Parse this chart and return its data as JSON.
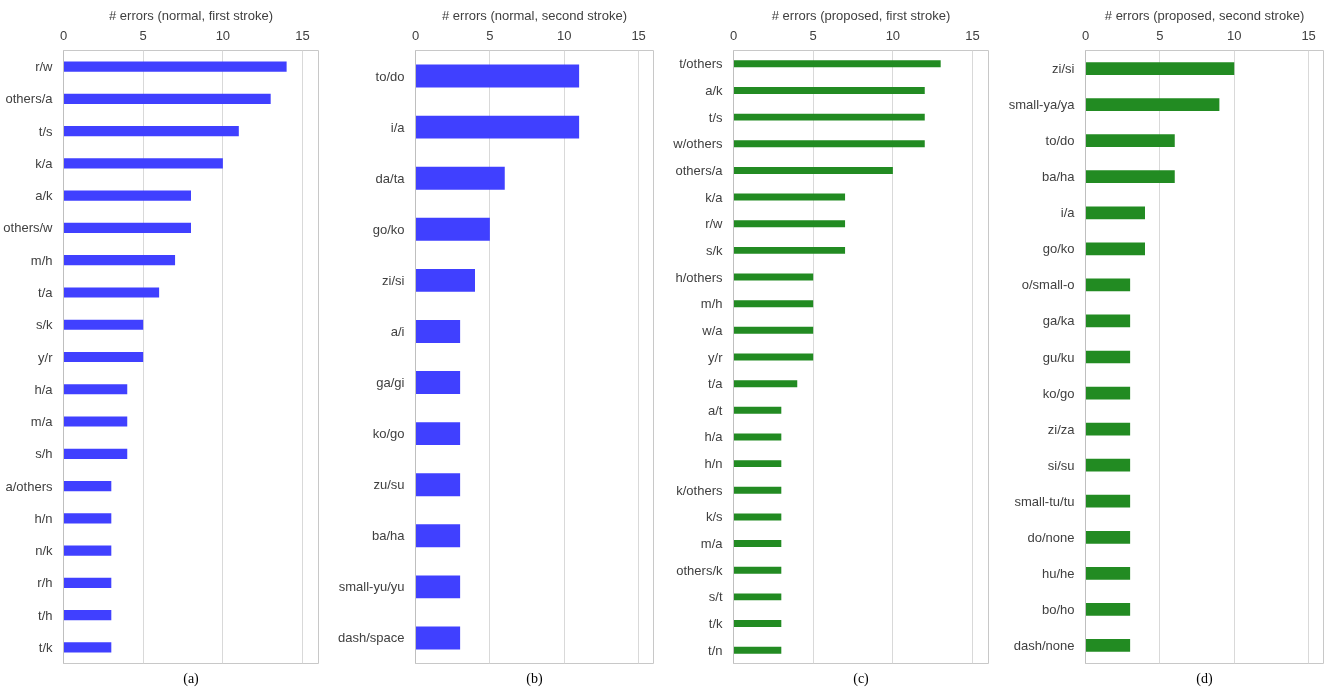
{
  "chart_data": [
    {
      "type": "bar",
      "orientation": "horizontal",
      "title": "# errors (normal, first stroke)",
      "annotations": [
        "(a)"
      ],
      "categories": [
        "r/w",
        "others/a",
        "t/s",
        "k/a",
        "a/k",
        "others/w",
        "m/h",
        "t/a",
        "s/k",
        "y/r",
        "h/a",
        "m/a",
        "s/h",
        "a/others",
        "h/n",
        "n/k",
        "r/h",
        "t/h",
        "t/k"
      ],
      "series": [
        {
          "color": "#4040ff",
          "values": [
            14,
            13,
            11,
            10,
            8,
            8,
            7,
            6,
            5,
            5,
            4,
            4,
            4,
            3,
            3,
            3,
            3,
            3,
            3
          ]
        }
      ],
      "xlim": [
        0,
        16
      ],
      "xticks": [
        0,
        5,
        10,
        15
      ],
      "grid": "x"
    },
    {
      "type": "bar",
      "orientation": "horizontal",
      "title": "# errors (normal, second stroke)",
      "annotations": [
        "(b)"
      ],
      "categories": [
        "to/do",
        "i/a",
        "da/ta",
        "go/ko",
        "zi/si",
        "a/i",
        "ga/gi",
        "ko/go",
        "zu/su",
        "ba/ha",
        "small-yu/yu",
        "dash/space"
      ],
      "series": [
        {
          "color": "#4040ff",
          "values": [
            11,
            11,
            6,
            5,
            4,
            3,
            3,
            3,
            3,
            3,
            3,
            3
          ]
        }
      ],
      "xlim": [
        0,
        16
      ],
      "xticks": [
        0,
        5,
        10,
        15
      ],
      "grid": "x"
    },
    {
      "type": "bar",
      "orientation": "horizontal",
      "title": "# errors (proposed, first stroke)",
      "annotations": [
        "(c)"
      ],
      "categories": [
        "t/others",
        "a/k",
        "t/s",
        "w/others",
        "others/a",
        "k/a",
        "r/w",
        "s/k",
        "h/others",
        "m/h",
        "w/a",
        "y/r",
        "t/a",
        "a/t",
        "h/a",
        "h/n",
        "k/others",
        "k/s",
        "m/a",
        "others/k",
        "s/t",
        "t/k",
        "t/n"
      ],
      "series": [
        {
          "color": "#228b22",
          "values": [
            13,
            12,
            12,
            12,
            10,
            7,
            7,
            7,
            5,
            5,
            5,
            5,
            4,
            3,
            3,
            3,
            3,
            3,
            3,
            3,
            3,
            3,
            3
          ]
        }
      ],
      "xlim": [
        0,
        16
      ],
      "xticks": [
        0,
        5,
        10,
        15
      ],
      "grid": "x"
    },
    {
      "type": "bar",
      "orientation": "horizontal",
      "title": "# errors (proposed, second stroke)",
      "annotations": [
        "(d)"
      ],
      "categories": [
        "zi/si",
        "small-ya/ya",
        "to/do",
        "ba/ha",
        "i/a",
        "go/ko",
        "o/small-o",
        "ga/ka",
        "gu/ku",
        "ko/go",
        "zi/za",
        "si/su",
        "small-tu/tu",
        "do/none",
        "hu/he",
        "bo/ho",
        "dash/none"
      ],
      "series": [
        {
          "color": "#228b22",
          "values": [
            10,
            9,
            6,
            6,
            4,
            4,
            3,
            3,
            3,
            3,
            3,
            3,
            3,
            3,
            3,
            3,
            3
          ]
        }
      ],
      "xlim": [
        0,
        16
      ],
      "xticks": [
        0,
        5,
        10,
        15
      ],
      "grid": "x"
    }
  ]
}
